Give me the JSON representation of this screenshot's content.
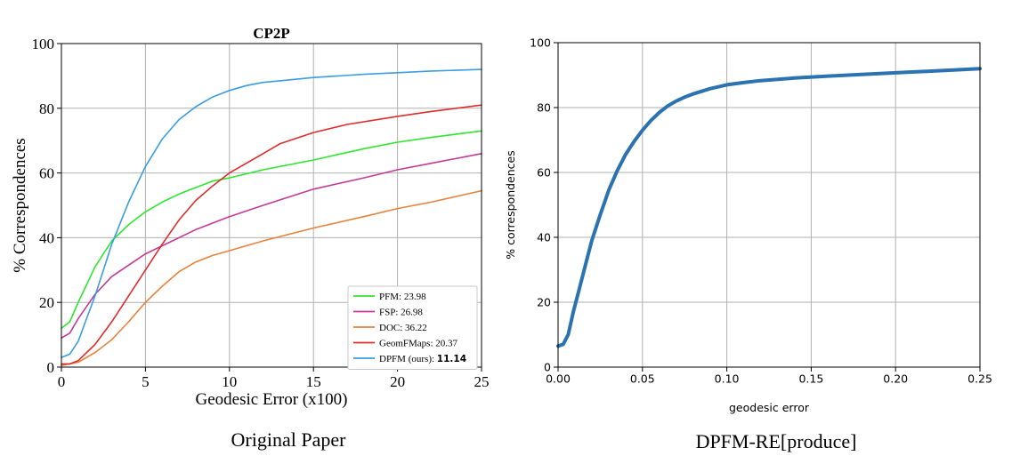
{
  "captions": {
    "left": "Original Paper",
    "right": "DPFM-RE[produce]"
  },
  "chart_data": [
    {
      "type": "line",
      "title": "CP2P",
      "xlabel": "Geodesic Error (x100)",
      "ylabel": "% Correspondences",
      "xlim": [
        0,
        25
      ],
      "ylim": [
        0,
        100
      ],
      "xticks": [
        0,
        5,
        10,
        15,
        20,
        25
      ],
      "yticks": [
        0,
        20,
        40,
        60,
        80,
        100
      ],
      "xtick_labels": [
        "0",
        "5",
        "10",
        "15",
        "20",
        "25"
      ],
      "ytick_labels": [
        "0",
        "20",
        "40",
        "60",
        "80",
        "100"
      ],
      "grid": true,
      "legend_position": "bottom-right",
      "series": [
        {
          "name": "PFM: 23.98",
          "color": "#2ee52e",
          "x": [
            0,
            0.5,
            1,
            2,
            3,
            4,
            5,
            6,
            7,
            8,
            9,
            10,
            12,
            15,
            18,
            20,
            22,
            25
          ],
          "y": [
            12,
            14,
            20,
            31,
            39,
            44,
            48,
            51,
            53.5,
            55.5,
            57.5,
            58.5,
            61,
            64,
            67.5,
            69.5,
            71,
            73
          ]
        },
        {
          "name": "FSP: 26.98",
          "color": "#c43a96",
          "x": [
            0,
            0.5,
            1,
            2,
            3,
            4,
            5,
            6,
            7,
            8,
            10,
            12,
            15,
            18,
            20,
            22,
            25
          ],
          "y": [
            9,
            10.5,
            15,
            22.5,
            28,
            31.5,
            35,
            37.5,
            40,
            42.5,
            46.5,
            50,
            55,
            58.5,
            61,
            63,
            66
          ]
        },
        {
          "name": "DOC: 36.22",
          "color": "#e8823a",
          "x": [
            0,
            0.5,
            1,
            2,
            3,
            4,
            5,
            6,
            7,
            8,
            9,
            10,
            12,
            15,
            18,
            20,
            22,
            25
          ],
          "y": [
            0.5,
            1,
            1.5,
            4.5,
            8.5,
            14,
            20,
            25,
            29.5,
            32.5,
            34.5,
            36,
            39,
            43,
            46.5,
            49,
            51,
            54.5
          ]
        },
        {
          "name": "GeomFMaps: 20.37",
          "color": "#e02b2b",
          "x": [
            0,
            0.5,
            1,
            2,
            3,
            4,
            5,
            6,
            7,
            8,
            9,
            10,
            12,
            13,
            15,
            17,
            20,
            22,
            25
          ],
          "y": [
            1,
            1,
            2,
            7,
            14,
            22,
            30,
            38,
            45.5,
            51.5,
            56,
            60,
            66,
            69,
            72.5,
            75,
            77.5,
            79,
            81
          ]
        },
        {
          "name": "DPFM (ours): 11.14",
          "color": "#3a9de0",
          "x": [
            0,
            0.5,
            1,
            1.5,
            2,
            3,
            4,
            5,
            6,
            7,
            8,
            9,
            10,
            11,
            12,
            13,
            15,
            18,
            20,
            22,
            25
          ],
          "y": [
            3,
            4,
            8,
            15,
            22,
            38,
            51,
            62,
            70.5,
            76.5,
            80.5,
            83.5,
            85.5,
            87,
            88,
            88.5,
            89.5,
            90.5,
            91,
            91.5,
            92
          ]
        }
      ],
      "legend_highlight": "11.14"
    },
    {
      "type": "line",
      "title": "",
      "xlabel": "geodesic error",
      "ylabel": "% correspondences",
      "xlim": [
        0,
        0.25
      ],
      "ylim": [
        0,
        100
      ],
      "xticks": [
        0,
        0.05,
        0.1,
        0.15,
        0.2,
        0.25
      ],
      "yticks": [
        0,
        20,
        40,
        60,
        80,
        100
      ],
      "xtick_labels": [
        "0.00",
        "0.05",
        "0.10",
        "0.15",
        "0.20",
        "0.25"
      ],
      "ytick_labels": [
        "0",
        "20",
        "40",
        "60",
        "80",
        "100"
      ],
      "grid": true,
      "series": [
        {
          "color": "#2a72b0",
          "x": [
            0,
            0.003,
            0.006,
            0.009,
            0.012,
            0.016,
            0.02,
            0.025,
            0.03,
            0.035,
            0.04,
            0.045,
            0.05,
            0.055,
            0.06,
            0.065,
            0.07,
            0.075,
            0.08,
            0.09,
            0.1,
            0.11,
            0.12,
            0.14,
            0.16,
            0.18,
            0.2,
            0.22,
            0.25
          ],
          "y": [
            6.5,
            7,
            10,
            17,
            23,
            31,
            39,
            47,
            54.5,
            60.5,
            65.5,
            69.5,
            73,
            76,
            78.5,
            80.5,
            82,
            83.2,
            84.2,
            85.8,
            87,
            87.7,
            88.3,
            89.1,
            89.7,
            90.2,
            90.7,
            91.2,
            92
          ]
        }
      ]
    }
  ]
}
